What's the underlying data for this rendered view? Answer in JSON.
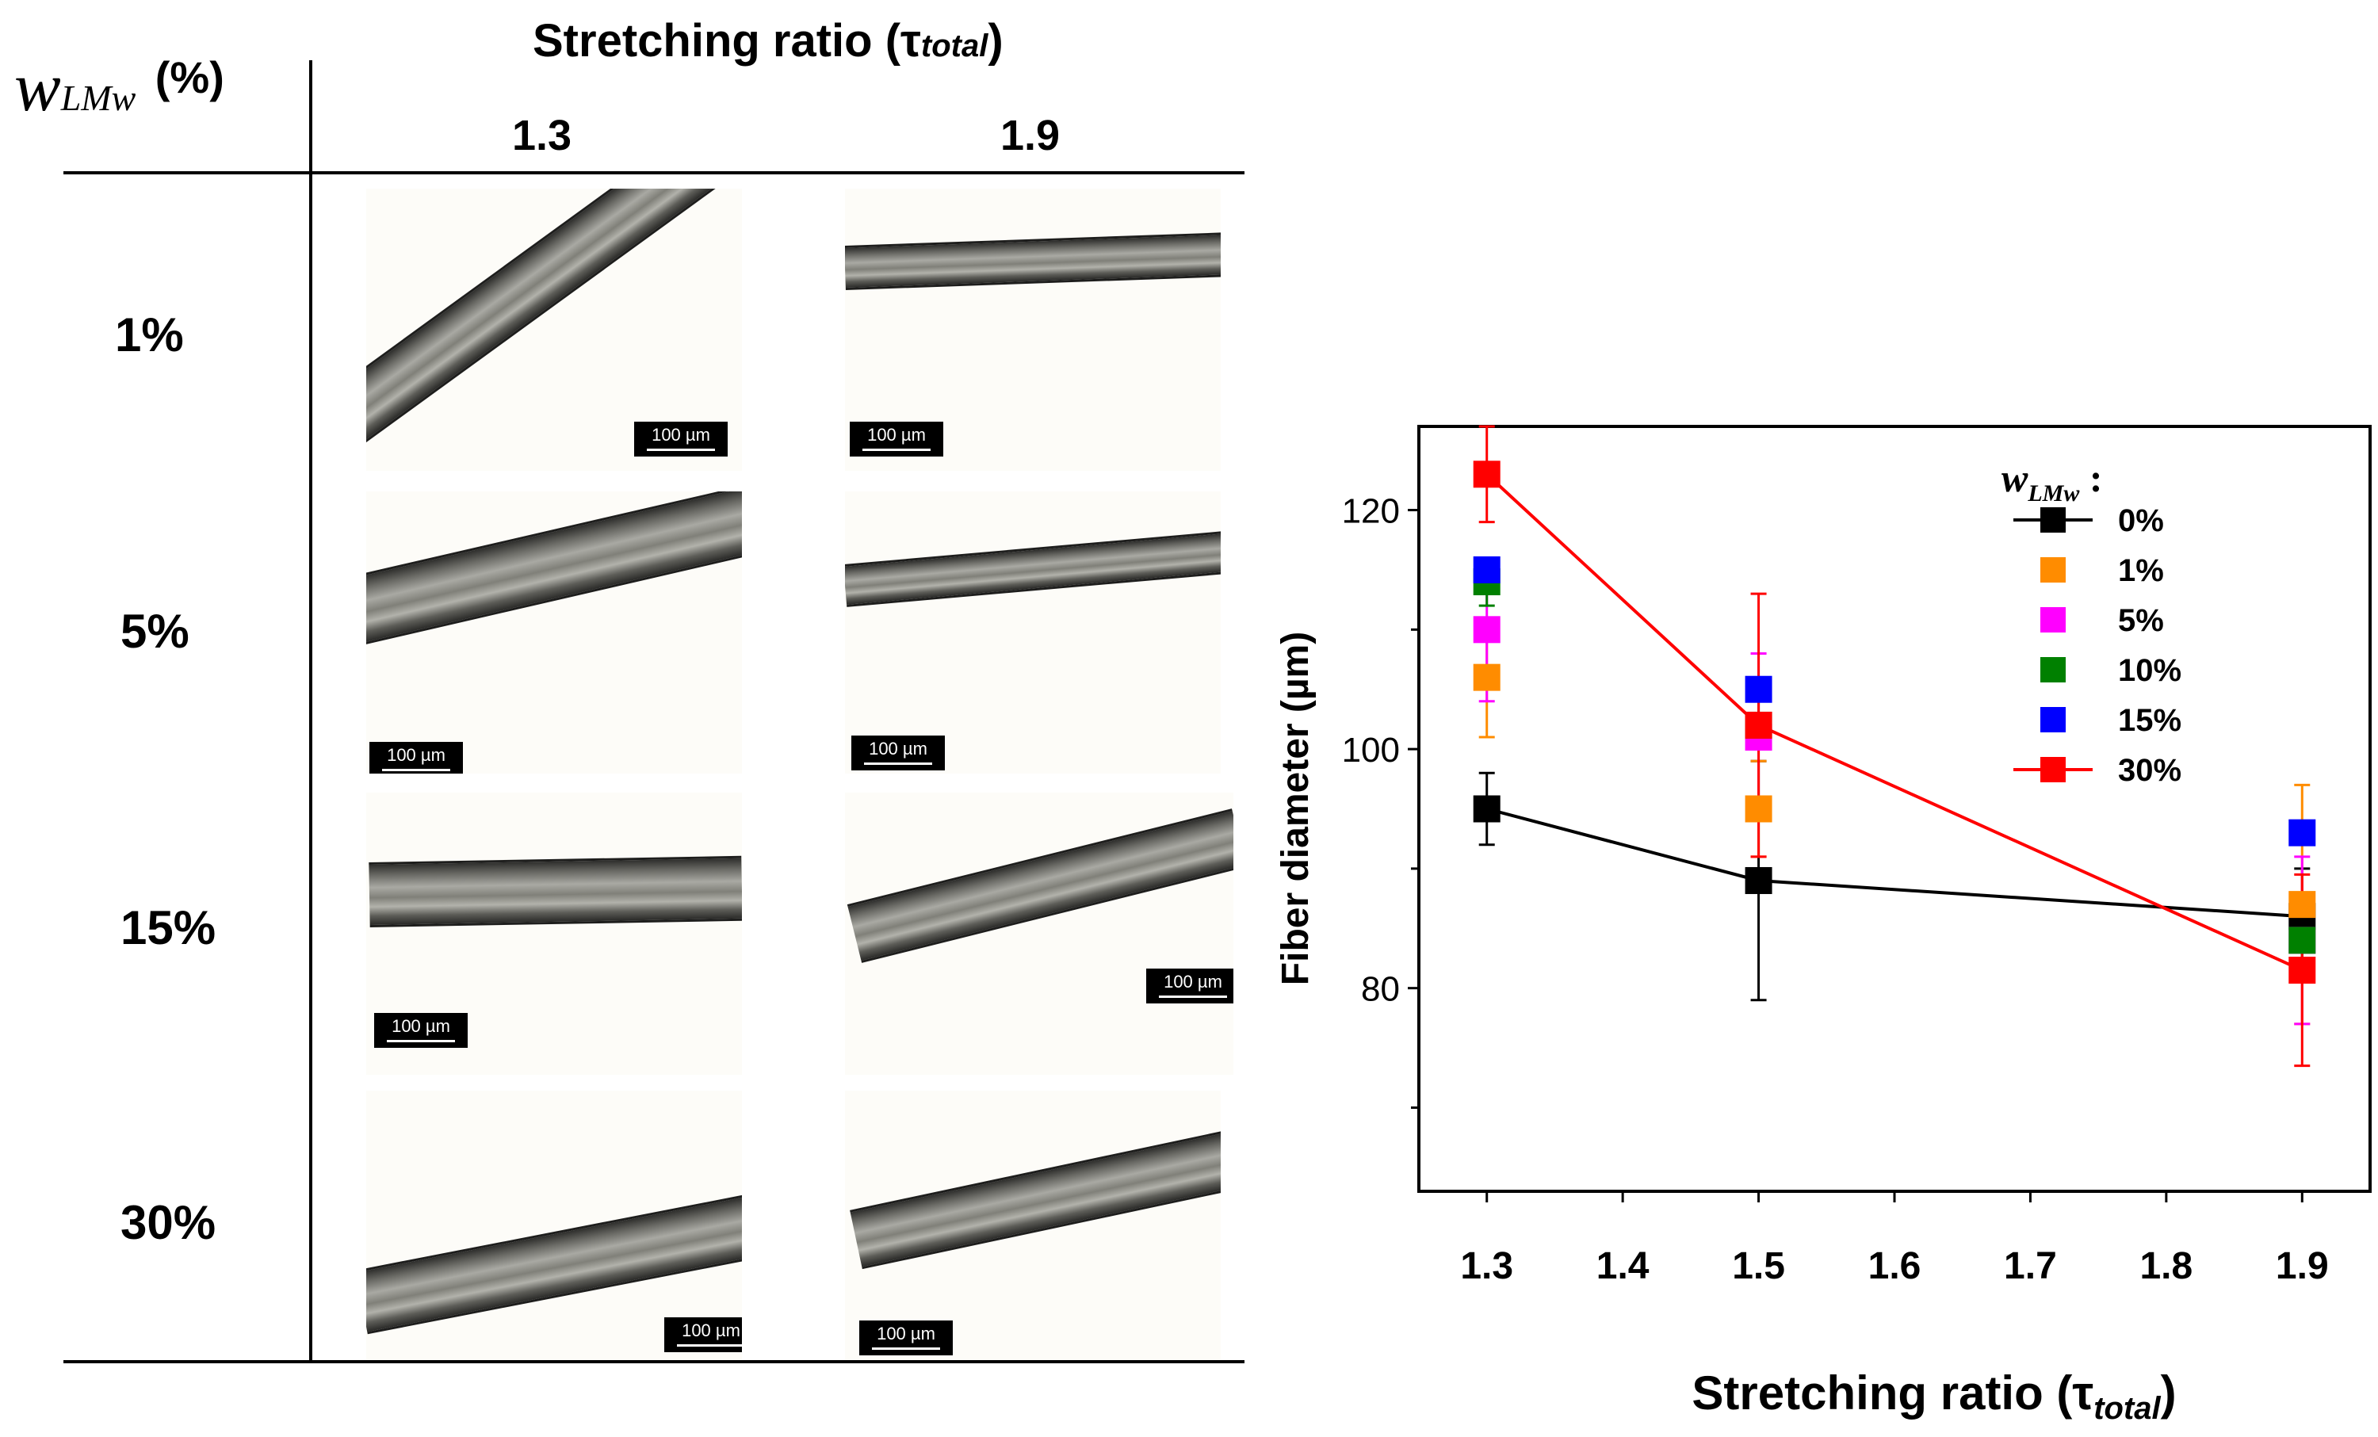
{
  "figure": {
    "header": {
      "stretch_title_prefix": "Stretching ratio (τ",
      "stretch_title_sub": "total",
      "stretch_title_suffix": ")",
      "w_symbol": "w",
      "w_sub": "LMw",
      "w_unit": "(%)",
      "col_values": [
        "1.3",
        "1.9"
      ]
    },
    "rows": [
      "1%",
      "5%",
      "15%",
      "30%"
    ],
    "scale_bar_label": "100 µm"
  },
  "chart_data": {
    "type": "scatter",
    "xlabel_prefix": "Stretching ratio (τ",
    "xlabel_sub": "total",
    "xlabel_suffix": ")",
    "ylabel": "Fiber diameter (µm)",
    "xlim": [
      1.25,
      1.95
    ],
    "ylim": [
      63,
      127
    ],
    "xticks": [
      1.3,
      1.4,
      1.5,
      1.6,
      1.7,
      1.8,
      1.9
    ],
    "xtick_labels": [
      "1.3",
      "1.4",
      "1.5",
      "1.6",
      "1.7",
      "1.8",
      "1.9"
    ],
    "yticks_major": [
      80,
      100,
      120
    ],
    "ytick_labels": [
      "80",
      "100",
      "120"
    ],
    "yticks_minor": [
      70,
      90,
      110
    ],
    "legend_title": "w",
    "legend_title_sub": "LMw",
    "legend_title_colon": " :",
    "series": [
      {
        "name": "0%",
        "color": "#000000",
        "line": true,
        "x": [
          1.3,
          1.5,
          1.9
        ],
        "y": [
          95,
          89,
          86
        ],
        "err": [
          3,
          10,
          4
        ]
      },
      {
        "name": "1%",
        "color": "#ff8c00",
        "line": false,
        "x": [
          1.3,
          1.5,
          1.9
        ],
        "y": [
          106,
          95,
          87
        ],
        "err": [
          5,
          4,
          10
        ]
      },
      {
        "name": "5%",
        "color": "#ff00ff",
        "line": false,
        "x": [
          1.3,
          1.5,
          1.9
        ],
        "y": [
          110,
          101,
          84
        ],
        "err": [
          6,
          7,
          7
        ]
      },
      {
        "name": "10%",
        "color": "#008000",
        "line": false,
        "x": [
          1.3,
          1.5,
          1.9
        ],
        "y": [
          114,
          102,
          84
        ],
        "err": [
          2,
          2,
          2
        ]
      },
      {
        "name": "15%",
        "color": "#0000ff",
        "line": false,
        "x": [
          1.3,
          1.5,
          1.9
        ],
        "y": [
          115,
          105,
          93
        ],
        "err": [
          1,
          1,
          1
        ]
      },
      {
        "name": "30%",
        "color": "#ff0000",
        "line": true,
        "x": [
          1.3,
          1.5,
          1.9
        ],
        "y": [
          123,
          102,
          81.5
        ],
        "err": [
          4,
          11,
          8
        ]
      }
    ]
  }
}
